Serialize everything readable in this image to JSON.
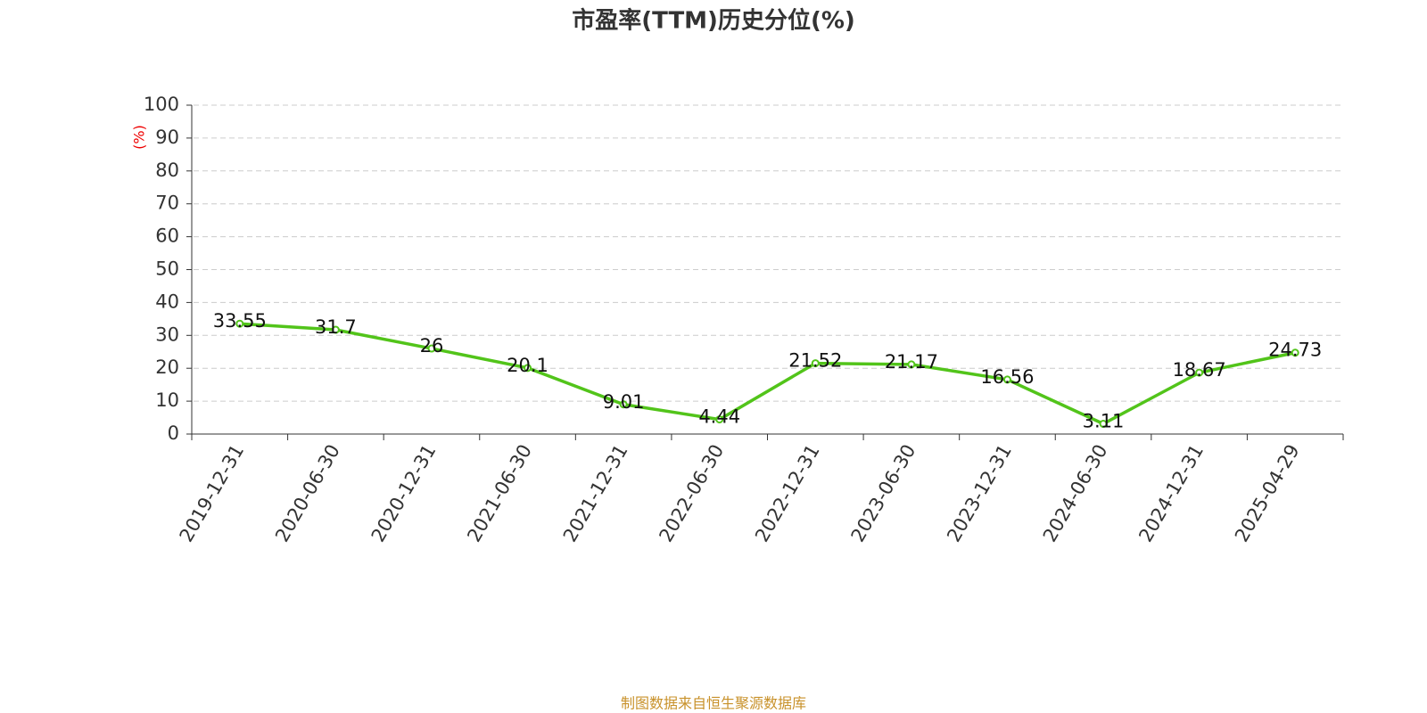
{
  "chart_data": {
    "type": "line",
    "title": "市盈率(TTM)历史分位(%)",
    "ylabel": "(%)",
    "categories": [
      "2019-12-31",
      "2020-06-30",
      "2020-12-31",
      "2021-06-30",
      "2021-12-31",
      "2022-06-30",
      "2022-12-31",
      "2023-06-30",
      "2023-12-31",
      "2024-06-30",
      "2024-12-31",
      "2025-04-29"
    ],
    "series": [
      {
        "name": "市盈率(TTM)历史分位",
        "color": "#52c41a",
        "values": [
          33.55,
          31.7,
          26,
          20.1,
          9.01,
          4.44,
          21.52,
          21.17,
          16.56,
          3.11,
          18.67,
          24.73
        ]
      }
    ],
    "ylim": [
      0,
      100
    ],
    "yticks": [
      0,
      10,
      20,
      30,
      40,
      50,
      60,
      70,
      80,
      90,
      100
    ],
    "grid": true,
    "source": "制图数据来自恒生聚源数据库"
  }
}
